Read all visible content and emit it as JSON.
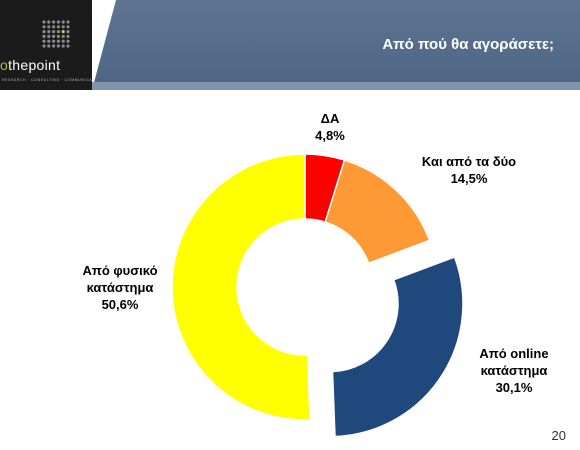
{
  "logo": {
    "wordmark_prefix": "o",
    "wordmark_rest": "thepoint",
    "tagline": "RESEARCH · CONSULTING · COMMUNICATIONS"
  },
  "header": {
    "title": "Από πού θα αγοράσετε;"
  },
  "chart_data": {
    "type": "pie",
    "title": "",
    "categories": [
      "ΔΑ",
      "Και από τα δύο",
      "Από online κατάστημα",
      "Από φυσικό κατάστημα"
    ],
    "label_lines": [
      [
        "ΔΑ"
      ],
      [
        "Και από τα δύο"
      ],
      [
        "Από online",
        "κατάστημα"
      ],
      [
        "Από φυσικό",
        "κατάστημα"
      ]
    ],
    "values": [
      4.8,
      14.5,
      30.1,
      50.6
    ],
    "value_labels": [
      "4,8%",
      "14,5%",
      "30,1%",
      "50,6%"
    ],
    "colors": [
      "#ff0000",
      "#ff9933",
      "#1f497d",
      "#ffff00"
    ],
    "exploded": [
      false,
      false,
      true,
      false
    ],
    "legend": "none",
    "start_angle_deg": 0,
    "direction": "clockwise"
  },
  "footer": {
    "page_number": "20"
  }
}
